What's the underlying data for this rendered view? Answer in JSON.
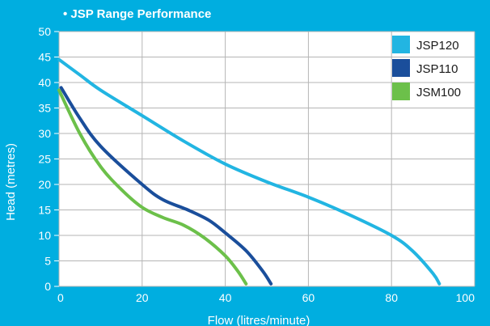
{
  "chart_data": {
    "type": "line",
    "title": "• JSP Range Performance",
    "xlabel": "Flow (litres/minute)",
    "ylabel": "Head (metres)",
    "xlim": [
      0,
      100
    ],
    "ylim": [
      0,
      50
    ],
    "xticks": [
      "0",
      "20",
      "40",
      "60",
      "80",
      "100"
    ],
    "yticks": [
      "0",
      "5",
      "10",
      "15",
      "20",
      "25",
      "30",
      "35",
      "40",
      "45",
      "50"
    ],
    "grid": true,
    "legend_position": "top-right",
    "series": [
      {
        "name": "JSP120",
        "color": "#22b5e2",
        "points": [
          [
            0,
            44.5
          ],
          [
            5,
            41.5
          ],
          [
            10,
            38.5
          ],
          [
            20,
            33.5
          ],
          [
            30,
            28.5
          ],
          [
            40,
            24
          ],
          [
            50,
            20.5
          ],
          [
            60,
            17.5
          ],
          [
            70,
            14
          ],
          [
            80,
            10
          ],
          [
            85,
            7
          ],
          [
            90,
            2.5
          ],
          [
            91.5,
            0.5
          ]
        ]
      },
      {
        "name": "JSP110",
        "color": "#1a4e9b",
        "points": [
          [
            0.5,
            39
          ],
          [
            5,
            33
          ],
          [
            10,
            27.5
          ],
          [
            20,
            20
          ],
          [
            25,
            17
          ],
          [
            31,
            15
          ],
          [
            36,
            13
          ],
          [
            40,
            10.5
          ],
          [
            45,
            7
          ],
          [
            49,
            3
          ],
          [
            51,
            0.5
          ]
        ]
      },
      {
        "name": "JSM100",
        "color": "#6cc04a",
        "points": [
          [
            0,
            38.5
          ],
          [
            5,
            30
          ],
          [
            10,
            23.5
          ],
          [
            15,
            19
          ],
          [
            20,
            15.5
          ],
          [
            25,
            13.5
          ],
          [
            30,
            12
          ],
          [
            35,
            9.5
          ],
          [
            40,
            6
          ],
          [
            43,
            3
          ],
          [
            45,
            0.5
          ]
        ]
      }
    ]
  }
}
